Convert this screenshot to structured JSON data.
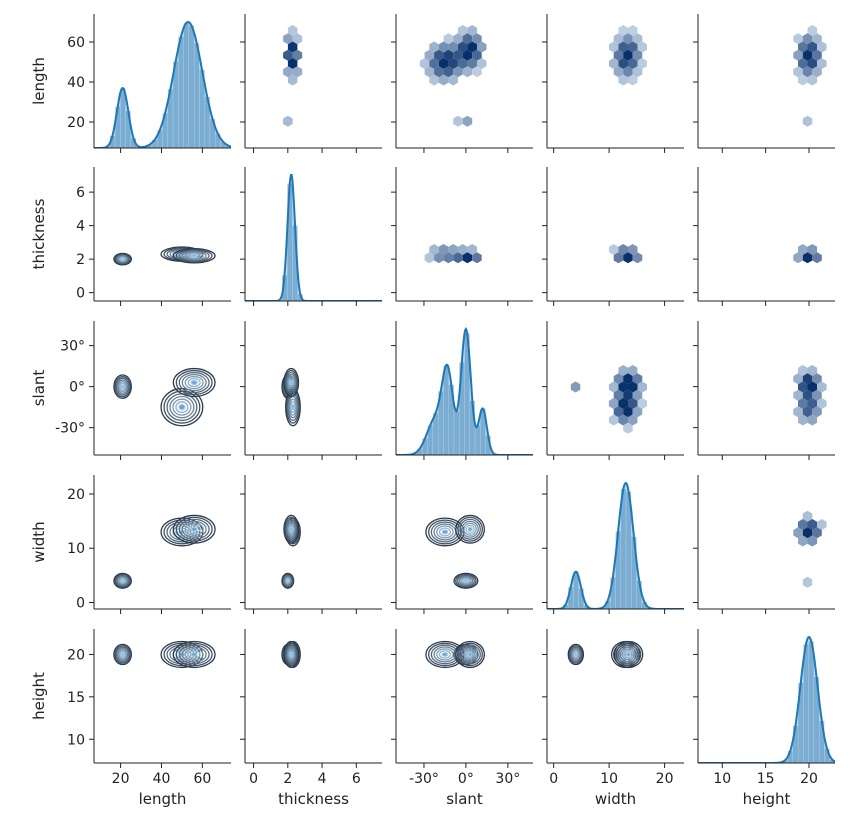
{
  "chart_data": {
    "type": "pairplot",
    "variables": [
      "length",
      "thickness",
      "slant",
      "width",
      "height"
    ],
    "axis_labels": {
      "length": "length",
      "thickness": "thickness",
      "slant": "slant",
      "width": "width",
      "height": "height"
    },
    "ticks": {
      "length": {
        "values": [
          20,
          40,
          60
        ],
        "labels": [
          "20",
          "40",
          "60"
        ]
      },
      "thickness": {
        "values": [
          0,
          2,
          4,
          6
        ],
        "labels": [
          "0",
          "2",
          "4",
          "6"
        ]
      },
      "slant": {
        "values": [
          -30,
          0,
          30
        ],
        "labels": [
          "-30°",
          "0°",
          "30°"
        ]
      },
      "width": {
        "values": [
          0,
          10,
          20
        ],
        "labels": [
          "0",
          "10",
          "20"
        ]
      },
      "height": {
        "values": [
          10,
          15,
          20
        ],
        "labels": [
          "10",
          "15",
          "20"
        ]
      }
    },
    "ranges": {
      "length": [
        7,
        74
      ],
      "thickness": [
        -0.5,
        7.5
      ],
      "slant": [
        -50,
        48
      ],
      "width": [
        -1.2,
        23.5
      ],
      "height": [
        7.2,
        23
      ]
    },
    "panel_types": {
      "diagonal": "histogram + kde",
      "upper": "hexbin",
      "lower": "kde contours"
    },
    "diagonal_kde": {
      "length": [
        {
          "mu": 21,
          "sd": 2.8,
          "w": 0.16
        },
        {
          "mu": 53,
          "sd": 7,
          "w": 0.84
        }
      ],
      "thickness": [
        {
          "mu": 2.2,
          "sd": 0.22,
          "w": 1.0
        }
      ],
      "slant": [
        {
          "mu": -22,
          "sd": 6,
          "w": 0.18
        },
        {
          "mu": -13,
          "sd": 4,
          "w": 0.27
        },
        {
          "mu": 0,
          "sd": 3.5,
          "w": 0.38
        },
        {
          "mu": 12,
          "sd": 3,
          "w": 0.12
        }
      ],
      "width": [
        {
          "mu": 4,
          "sd": 0.9,
          "w": 0.16
        },
        {
          "mu": 13,
          "sd": 1.4,
          "w": 0.84
        }
      ],
      "height": [
        {
          "mu": 20,
          "sd": 1.0,
          "w": 1.0
        }
      ]
    },
    "clusters": [
      {
        "length": 21,
        "thickness": 2.0,
        "slant": 0,
        "width": 4,
        "height": 20,
        "weight": 0.16,
        "spread": {
          "length": 2.5,
          "thickness": 0.2,
          "slant": 5,
          "width": 0.8,
          "height": 0.7
        }
      },
      {
        "length": 50,
        "thickness": 2.3,
        "slant": -15,
        "width": 13,
        "height": 20,
        "weight": 0.42,
        "spread": {
          "length": 6,
          "thickness": 0.25,
          "slant": 8,
          "width": 1.5,
          "height": 0.9
        }
      },
      {
        "length": 56,
        "thickness": 2.2,
        "slant": 3,
        "width": 13.5,
        "height": 20,
        "weight": 0.42,
        "spread": {
          "length": 6,
          "thickness": 0.25,
          "slant": 6,
          "width": 1.5,
          "height": 0.9
        }
      }
    ],
    "colors": {
      "line": "#1f77b4",
      "hist_fill": "#9ec3df",
      "hex_dark": "#08306b",
      "contour_dark": "#2b3a4a",
      "contour_light": "#a6cbe6"
    }
  }
}
